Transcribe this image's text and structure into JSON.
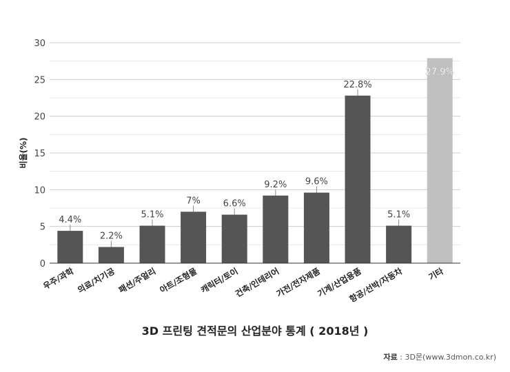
{
  "chart_data": {
    "type": "bar",
    "title": "3D 프린팅 견적문의 산업분야 통계 ( 2018년 )",
    "ylabel": "비율(%)",
    "xlabel": "",
    "ylim": [
      0,
      30
    ],
    "yticks": [
      0,
      5,
      10,
      15,
      20,
      25,
      30
    ],
    "grid": true,
    "categories": [
      "우주/과학",
      "의료/치기공",
      "패션/주얼리",
      "아트/조형물",
      "캐릭터/토이",
      "건축/인테리어",
      "가전/전자제품",
      "기계/산업용품",
      "항공/선박/자동차",
      "기타"
    ],
    "values": [
      4.4,
      2.2,
      5.1,
      7,
      6.6,
      9.2,
      9.6,
      22.8,
      5.1,
      27.9
    ],
    "data_labels": [
      "4.4%",
      "2.2%",
      "5.1%",
      "7%",
      "6.6%",
      "9.2%",
      "9.6%",
      "22.8%",
      "5.1%",
      "27.9%"
    ],
    "colors": {
      "default": "#555555",
      "highlight": "#c0c0c0",
      "grid": "#cccccc",
      "minor_grid": "#e8e8e8"
    },
    "highlight_index": 9
  },
  "source": {
    "label": "자료",
    "value": "3D몬(www.3dmon.co.kr)"
  }
}
